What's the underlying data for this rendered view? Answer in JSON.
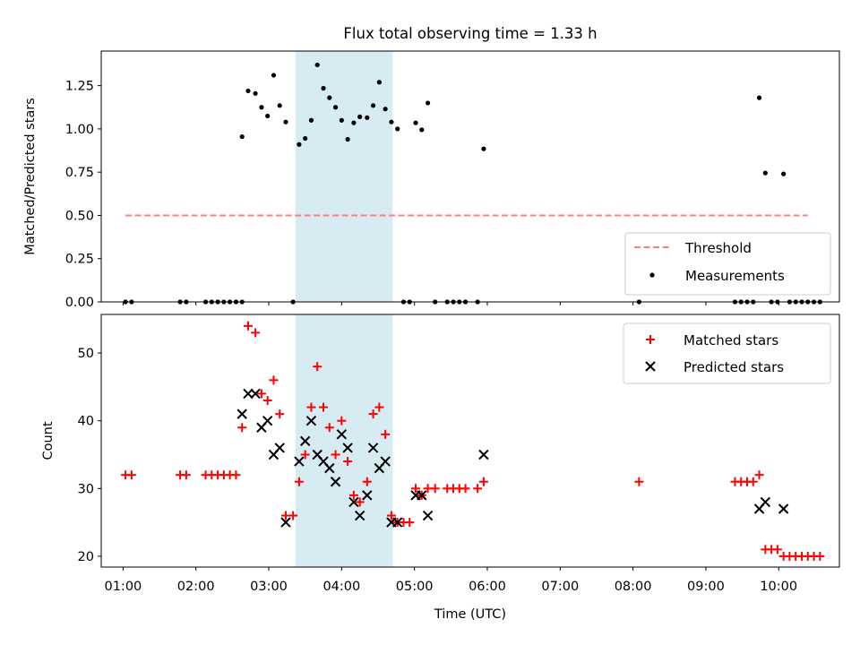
{
  "chart_data": [
    {
      "type": "scatter",
      "title": "Flux total observing time = 1.33 h",
      "ylabel": "Matched/Predicted stars",
      "xlabel": "",
      "xlim": [
        "00:42",
        "10:50"
      ],
      "ylim": [
        0,
        1.45
      ],
      "yticks": [
        "0.00",
        "0.25",
        "0.50",
        "0.75",
        "1.00",
        "1.25"
      ],
      "highlight_span": [
        "03:22",
        "04:42"
      ],
      "threshold": {
        "name": "Threshold",
        "value": 0.5,
        "x": [
          "01:02",
          "10:24"
        ],
        "color": "#ff7f7f"
      },
      "legend_position": "lower-right",
      "series": [
        {
          "name": "Measurements",
          "color": "#000000",
          "points": [
            [
              "01:02",
              0
            ],
            [
              "01:07",
              0
            ],
            [
              "01:47",
              0
            ],
            [
              "01:52",
              0
            ],
            [
              "02:08",
              0
            ],
            [
              "02:13",
              0
            ],
            [
              "02:18",
              0
            ],
            [
              "02:23",
              0
            ],
            [
              "02:28",
              0
            ],
            [
              "02:33",
              0
            ],
            [
              "02:38",
              0
            ],
            [
              "02:38",
              0.955
            ],
            [
              "02:43",
              1.22
            ],
            [
              "02:49",
              1.205
            ],
            [
              "02:54",
              1.125
            ],
            [
              "02:59",
              1.075
            ],
            [
              "03:04",
              1.31
            ],
            [
              "03:09",
              1.135
            ],
            [
              "03:14",
              1.04
            ],
            [
              "03:20",
              0
            ],
            [
              "03:25",
              0.91
            ],
            [
              "03:30",
              0.945
            ],
            [
              "03:35",
              1.05
            ],
            [
              "03:40",
              1.37
            ],
            [
              "03:45",
              1.235
            ],
            [
              "03:50",
              1.18
            ],
            [
              "03:55",
              1.125
            ],
            [
              "04:00",
              1.05
            ],
            [
              "04:05",
              0.94
            ],
            [
              "04:10",
              1.035
            ],
            [
              "04:15",
              1.07
            ],
            [
              "04:21",
              1.065
            ],
            [
              "04:26",
              1.135
            ],
            [
              "04:31",
              1.27
            ],
            [
              "04:36",
              1.115
            ],
            [
              "04:41",
              1.04
            ],
            [
              "04:46",
              1.0
            ],
            [
              "04:51",
              0
            ],
            [
              "04:56",
              0
            ],
            [
              "05:01",
              1.035
            ],
            [
              "05:06",
              0.995
            ],
            [
              "05:11",
              1.15
            ],
            [
              "05:17",
              0
            ],
            [
              "05:27",
              0
            ],
            [
              "05:32",
              0
            ],
            [
              "05:37",
              0
            ],
            [
              "05:42",
              0
            ],
            [
              "05:52",
              0
            ],
            [
              "05:57",
              0.885
            ],
            [
              "08:05",
              0
            ],
            [
              "09:24",
              0
            ],
            [
              "09:29",
              0
            ],
            [
              "09:34",
              0
            ],
            [
              "09:39",
              0
            ],
            [
              "09:44",
              1.18
            ],
            [
              "09:49",
              0.745
            ],
            [
              "09:54",
              0
            ],
            [
              "09:59",
              0
            ],
            [
              "10:04",
              0.74
            ],
            [
              "10:09",
              0
            ],
            [
              "10:14",
              0
            ],
            [
              "10:19",
              0
            ],
            [
              "10:24",
              0
            ],
            [
              "10:29",
              0
            ],
            [
              "10:34",
              0
            ]
          ]
        }
      ]
    },
    {
      "type": "scatter",
      "title": "",
      "ylabel": "Count",
      "xlabel": "Time (UTC)",
      "xlim": [
        "00:42",
        "10:50"
      ],
      "ylim": [
        18.4,
        55.7
      ],
      "yticks": [
        "20",
        "30",
        "40",
        "50"
      ],
      "xticks": [
        "01:00",
        "02:00",
        "03:00",
        "04:00",
        "05:00",
        "06:00",
        "07:00",
        "08:00",
        "09:00",
        "10:00"
      ],
      "highlight_span": [
        "03:22",
        "04:42"
      ],
      "legend_position": "upper-right",
      "series": [
        {
          "name": "Matched stars",
          "marker": "+",
          "color": "#ff0000",
          "points": [
            [
              "01:02",
              32
            ],
            [
              "01:07",
              32
            ],
            [
              "01:47",
              32
            ],
            [
              "01:52",
              32
            ],
            [
              "02:08",
              32
            ],
            [
              "02:13",
              32
            ],
            [
              "02:18",
              32
            ],
            [
              "02:23",
              32
            ],
            [
              "02:28",
              32
            ],
            [
              "02:33",
              32
            ],
            [
              "02:38",
              39
            ],
            [
              "02:43",
              54
            ],
            [
              "02:49",
              53
            ],
            [
              "02:54",
              44
            ],
            [
              "02:59",
              43
            ],
            [
              "03:04",
              46
            ],
            [
              "03:09",
              41
            ],
            [
              "03:14",
              26
            ],
            [
              "03:20",
              26
            ],
            [
              "03:25",
              31
            ],
            [
              "03:30",
              35
            ],
            [
              "03:35",
              42
            ],
            [
              "03:40",
              48
            ],
            [
              "03:45",
              42
            ],
            [
              "03:50",
              39
            ],
            [
              "03:55",
              35
            ],
            [
              "04:00",
              40
            ],
            [
              "04:05",
              34
            ],
            [
              "04:10",
              29
            ],
            [
              "04:15",
              28
            ],
            [
              "04:21",
              31
            ],
            [
              "04:26",
              41
            ],
            [
              "04:31",
              42
            ],
            [
              "04:36",
              38
            ],
            [
              "04:41",
              26
            ],
            [
              "04:46",
              25
            ],
            [
              "04:51",
              25
            ],
            [
              "04:56",
              25
            ],
            [
              "05:01",
              30
            ],
            [
              "05:06",
              29
            ],
            [
              "05:11",
              30
            ],
            [
              "05:17",
              30
            ],
            [
              "05:27",
              30
            ],
            [
              "05:32",
              30
            ],
            [
              "05:37",
              30
            ],
            [
              "05:42",
              30
            ],
            [
              "05:52",
              30
            ],
            [
              "05:57",
              31
            ],
            [
              "08:05",
              31
            ],
            [
              "09:24",
              31
            ],
            [
              "09:29",
              31
            ],
            [
              "09:34",
              31
            ],
            [
              "09:39",
              31
            ],
            [
              "09:44",
              32
            ],
            [
              "09:49",
              21
            ],
            [
              "09:54",
              21
            ],
            [
              "09:59",
              21
            ],
            [
              "10:04",
              20
            ],
            [
              "10:09",
              20
            ],
            [
              "10:14",
              20
            ],
            [
              "10:19",
              20
            ],
            [
              "10:24",
              20
            ],
            [
              "10:29",
              20
            ],
            [
              "10:34",
              20
            ]
          ]
        },
        {
          "name": "Predicted stars",
          "marker": "x",
          "color": "#000000",
          "points": [
            [
              "02:38",
              41
            ],
            [
              "02:43",
              44
            ],
            [
              "02:49",
              44
            ],
            [
              "02:54",
              39
            ],
            [
              "02:59",
              40
            ],
            [
              "03:04",
              35
            ],
            [
              "03:09",
              36
            ],
            [
              "03:14",
              25
            ],
            [
              "03:25",
              34
            ],
            [
              "03:30",
              37
            ],
            [
              "03:35",
              40
            ],
            [
              "03:40",
              35
            ],
            [
              "03:45",
              34
            ],
            [
              "03:50",
              33
            ],
            [
              "03:55",
              31
            ],
            [
              "04:00",
              38
            ],
            [
              "04:05",
              36
            ],
            [
              "04:10",
              28
            ],
            [
              "04:15",
              26
            ],
            [
              "04:21",
              29
            ],
            [
              "04:26",
              36
            ],
            [
              "04:31",
              33
            ],
            [
              "04:36",
              34
            ],
            [
              "04:41",
              25
            ],
            [
              "04:46",
              25
            ],
            [
              "05:01",
              29
            ],
            [
              "05:06",
              29
            ],
            [
              "05:11",
              26
            ],
            [
              "05:57",
              35
            ],
            [
              "09:44",
              27
            ],
            [
              "09:49",
              28
            ],
            [
              "10:04",
              27
            ]
          ]
        }
      ]
    }
  ]
}
